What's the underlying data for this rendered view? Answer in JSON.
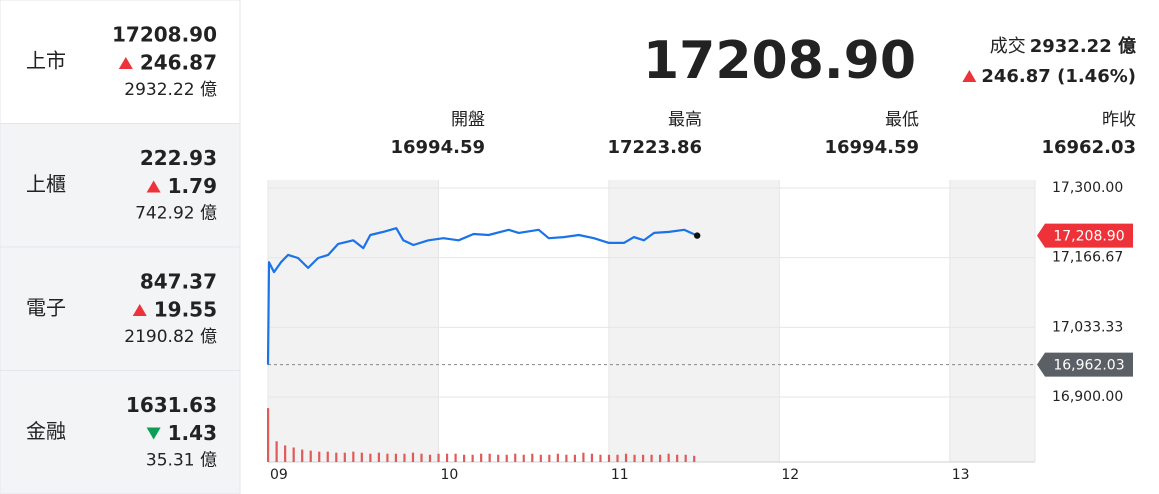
{
  "colors": {
    "up": "#ee3239",
    "down": "#0b9e57"
  },
  "sidebar": [
    {
      "name": "上市",
      "price": "17208.90",
      "change": "246.87",
      "direction": "up",
      "volume": "2932.22 億"
    },
    {
      "name": "上櫃",
      "price": "222.93",
      "change": "1.79",
      "direction": "up",
      "volume": "742.92 億"
    },
    {
      "name": "電子",
      "price": "847.37",
      "change": "19.55",
      "direction": "up",
      "volume": "2190.82 億"
    },
    {
      "name": "金融",
      "price": "1631.63",
      "change": "1.43",
      "direction": "down",
      "volume": "35.31 億"
    }
  ],
  "header": {
    "price": "17208.90",
    "turnover_label": "成交",
    "turnover": "2932.22 億",
    "change": "246.87 (1.46%)",
    "direction": "up"
  },
  "stats": [
    {
      "label": "開盤",
      "value": "16994.59"
    },
    {
      "label": "最高",
      "value": "17223.86"
    },
    {
      "label": "最低",
      "value": "16994.59"
    },
    {
      "label": "昨收",
      "value": "16962.03"
    }
  ],
  "chart_data": {
    "type": "line",
    "x": [
      9.0,
      9.006,
      9.035,
      9.076,
      9.118,
      9.176,
      9.235,
      9.294,
      9.353,
      9.412,
      9.5,
      9.559,
      9.6,
      9.676,
      9.753,
      9.794,
      9.853,
      9.941,
      10.029,
      10.118,
      10.206,
      10.294,
      10.412,
      10.471,
      10.588,
      10.647,
      10.735,
      10.824,
      10.912,
      11.0,
      11.088,
      11.147,
      11.206,
      11.265,
      11.353,
      11.441,
      11.518
    ],
    "series": [
      {
        "color": "#1a73e8",
        "values": [
          16962,
          17158,
          17139,
          17158,
          17172,
          17166,
          17147,
          17166,
          17172,
          17193,
          17200,
          17185,
          17210,
          17216,
          17223,
          17200,
          17191,
          17200,
          17204,
          17200,
          17212,
          17210,
          17220,
          17214,
          17220,
          17204,
          17206,
          17210,
          17204,
          17195,
          17195,
          17206,
          17200,
          17214,
          17216,
          17220,
          17208.9
        ]
      }
    ],
    "xlim": [
      9,
      13.5
    ],
    "xticks": [
      {
        "value": 9,
        "label": "09"
      },
      {
        "value": 10,
        "label": "10"
      },
      {
        "value": 11,
        "label": "11"
      },
      {
        "value": 12,
        "label": "12"
      },
      {
        "value": 13,
        "label": "13"
      }
    ],
    "ylim": [
      16900,
      17300
    ],
    "yticks": [
      {
        "value": 17300,
        "label": "17,300.00"
      },
      {
        "value": 17166.67,
        "label": "17,166.67"
      },
      {
        "value": 17033.33,
        "label": "17,033.33"
      },
      {
        "value": 16900,
        "label": "16,900.00"
      }
    ],
    "grid": true,
    "last": {
      "value": 17208.9,
      "label": "17,208.90",
      "color": "#ee3239"
    },
    "reference": {
      "value": 16962.03,
      "label": "16,962.03",
      "color": "#5b6066"
    },
    "volume": {
      "color": "#e05a5a",
      "ylim": [
        0,
        55
      ],
      "x": [
        9.0,
        9.05,
        9.1,
        9.15,
        9.2,
        9.25,
        9.3,
        9.35,
        9.4,
        9.45,
        9.5,
        9.55,
        9.6,
        9.65,
        9.7,
        9.75,
        9.8,
        9.85,
        9.9,
        9.95,
        10.0,
        10.05,
        10.1,
        10.15,
        10.2,
        10.25,
        10.3,
        10.35,
        10.4,
        10.45,
        10.5,
        10.55,
        10.6,
        10.65,
        10.7,
        10.75,
        10.8,
        10.85,
        10.9,
        10.95,
        11.0,
        11.05,
        11.1,
        11.15,
        11.2,
        11.25,
        11.3,
        11.35,
        11.4,
        11.45,
        11.5
      ],
      "values": [
        52,
        20,
        16,
        14,
        12,
        11,
        10,
        10,
        9,
        9,
        10,
        9,
        8,
        9,
        8,
        8,
        8,
        9,
        8,
        7,
        8,
        8,
        8,
        7,
        7,
        8,
        8,
        7,
        7,
        8,
        7,
        8,
        7,
        7,
        8,
        7,
        7,
        9,
        8,
        7,
        7,
        7,
        8,
        7,
        7,
        7,
        7,
        8,
        7,
        7,
        6
      ]
    }
  }
}
